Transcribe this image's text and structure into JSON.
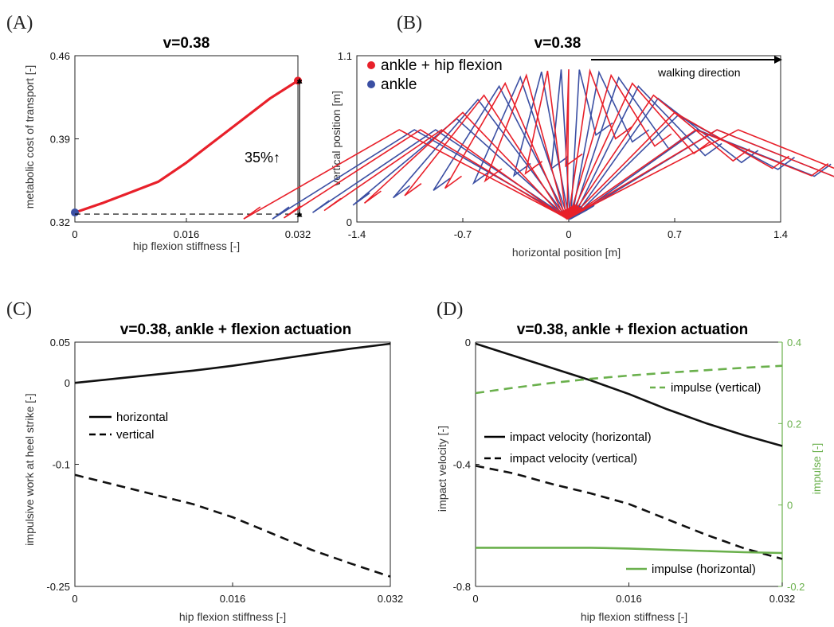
{
  "colors": {
    "red": "#e8202a",
    "blue": "#3b4fa3",
    "black": "#111111",
    "green": "#6ab04c",
    "axis": "#222222"
  },
  "chart_data": [
    {
      "id": "A",
      "panel_label": "(A)",
      "type": "line",
      "title": "v=0.38",
      "xlabel": "hip flexion stiffness [-]",
      "ylabel": "metabolic cost of transport [-]",
      "xlim": [
        0,
        0.032
      ],
      "ylim": [
        0.32,
        0.46
      ],
      "xticks": [
        0,
        0.016,
        0.032
      ],
      "xtick_labels": [
        "0",
        "0.016",
        "0.032"
      ],
      "yticks": [
        0.32,
        0.39,
        0.46
      ],
      "ytick_labels": [
        "0.32",
        "0.39",
        "0.46"
      ],
      "series": [
        {
          "color": "red",
          "x": [
            0,
            0.004,
            0.008,
            0.012,
            0.016,
            0.02,
            0.024,
            0.028,
            0.032
          ],
          "y": [
            0.328,
            0.336,
            0.345,
            0.354,
            0.37,
            0.388,
            0.406,
            0.424,
            0.439
          ]
        }
      ],
      "markers": [
        {
          "x": 0,
          "y": 0.328,
          "color": "blue"
        },
        {
          "x": 0.032,
          "y": 0.439,
          "color": "red"
        }
      ],
      "annotation": {
        "text": "35%↑",
        "y_low": 0.328,
        "y_high": 0.439
      }
    },
    {
      "id": "B",
      "panel_label": "(B)",
      "type": "line",
      "title": "v=0.38",
      "xlabel": "horizontal position [m]",
      "ylabel": "vertical position [m]",
      "xlim": [
        -1.4,
        1.4
      ],
      "ylim": [
        0,
        1.1
      ],
      "xticks": [
        -1.4,
        -0.7,
        0,
        0.7,
        1.4
      ],
      "xtick_labels": [
        "-1.4",
        "-0.7",
        "0",
        "0.7",
        "1.4"
      ],
      "yticks": [
        0,
        1.1
      ],
      "ytick_labels": [
        "0",
        "1.1"
      ],
      "legend": [
        {
          "label": "ankle + hip flexion",
          "color": "red"
        },
        {
          "label": "ankle",
          "color": "blue"
        }
      ],
      "arrow_label": "walking direction",
      "stick_figures": {
        "red": {
          "leg_length": 1.0,
          "foot_length": 0.11,
          "hip_x": [
            -1.12,
            -0.98,
            -0.84,
            -0.7,
            -0.56,
            -0.42,
            -0.28,
            -0.14,
            0.0,
            0.14,
            0.28,
            0.42,
            0.56,
            0.7,
            0.84,
            0.98,
            1.12
          ]
        },
        "blue": {
          "leg_length": 1.0,
          "foot_length": 0.11,
          "hip_x": [
            -1.02,
            -0.88,
            -0.74,
            -0.6,
            -0.46,
            -0.32,
            -0.18,
            -0.05,
            0.07,
            0.2,
            0.33,
            0.46,
            0.59,
            0.72,
            0.85,
            0.98
          ]
        }
      }
    },
    {
      "id": "C",
      "panel_label": "(C)",
      "type": "line",
      "title": "v=0.38, ankle + flexion actuation",
      "xlabel": "hip flexion stiffness [-]",
      "ylabel": "impulsive work at heel strike [-]",
      "xlim": [
        0,
        0.032
      ],
      "ylim": [
        -0.25,
        0.05
      ],
      "xticks": [
        0,
        0.016,
        0.032
      ],
      "xtick_labels": [
        "0",
        "0.016",
        "0.032"
      ],
      "yticks": [
        -0.25,
        -0.1,
        0,
        0.05
      ],
      "ytick_labels": [
        "-0.25",
        "-0.1",
        "0",
        "0.05"
      ],
      "series": [
        {
          "name": "horizontal",
          "color": "black",
          "dash": false,
          "x": [
            0,
            0.004,
            0.008,
            0.012,
            0.016,
            0.02,
            0.024,
            0.028,
            0.032
          ],
          "y": [
            0.0,
            0.005,
            0.01,
            0.015,
            0.021,
            0.028,
            0.035,
            0.042,
            0.048
          ]
        },
        {
          "name": "vertical",
          "color": "black",
          "dash": true,
          "x": [
            0,
            0.004,
            0.008,
            0.012,
            0.016,
            0.02,
            0.024,
            0.028,
            0.032
          ],
          "y": [
            -0.113,
            -0.125,
            -0.137,
            -0.149,
            -0.165,
            -0.185,
            -0.205,
            -0.222,
            -0.238
          ]
        }
      ],
      "legend": [
        {
          "label": "horizontal",
          "dash": false
        },
        {
          "label": "vertical",
          "dash": true
        }
      ]
    },
    {
      "id": "D",
      "panel_label": "(D)",
      "type": "line",
      "title": "v=0.38, ankle + flexion actuation",
      "xlabel": "hip flexion stiffness [-]",
      "ylabel": "impact velocity [-]",
      "ylabel_right": "impulse [-]",
      "xlim": [
        0,
        0.032
      ],
      "ylim": [
        -0.8,
        0
      ],
      "ylim_right": [
        -0.2,
        0.4
      ],
      "xticks": [
        0,
        0.016,
        0.032
      ],
      "xtick_labels": [
        "0",
        "0.016",
        "0.032"
      ],
      "yticks": [
        -0.8,
        -0.4,
        0
      ],
      "ytick_labels": [
        "-0.8",
        "-0.4",
        "0"
      ],
      "yticks_right": [
        -0.2,
        0,
        0.2,
        0.4
      ],
      "ytick_labels_right": [
        "-0.2",
        "0",
        "0.2",
        "0.4"
      ],
      "series": [
        {
          "name": "impact velocity (horizontal)",
          "axis": "left",
          "color": "black",
          "dash": false,
          "x": [
            0,
            0.004,
            0.008,
            0.012,
            0.016,
            0.02,
            0.024,
            0.028,
            0.032
          ],
          "y": [
            -0.005,
            -0.045,
            -0.085,
            -0.125,
            -0.17,
            -0.22,
            -0.265,
            -0.305,
            -0.34
          ]
        },
        {
          "name": "impact velocity (vertical)",
          "axis": "left",
          "color": "black",
          "dash": true,
          "x": [
            0,
            0.004,
            0.008,
            0.012,
            0.016,
            0.02,
            0.024,
            0.028,
            0.032
          ],
          "y": [
            -0.405,
            -0.43,
            -0.465,
            -0.495,
            -0.53,
            -0.58,
            -0.63,
            -0.675,
            -0.71
          ]
        },
        {
          "name": "impulse (vertical)",
          "axis": "right",
          "color": "green",
          "dash": true,
          "x": [
            0,
            0.004,
            0.008,
            0.012,
            0.016,
            0.02,
            0.024,
            0.028,
            0.032
          ],
          "y": [
            0.275,
            0.288,
            0.3,
            0.31,
            0.318,
            0.325,
            0.331,
            0.337,
            0.342
          ]
        },
        {
          "name": "impulse (horizontal)",
          "axis": "right",
          "color": "green",
          "dash": false,
          "x": [
            0,
            0.004,
            0.008,
            0.012,
            0.016,
            0.02,
            0.024,
            0.028,
            0.032
          ],
          "y": [
            -0.105,
            -0.105,
            -0.105,
            -0.105,
            -0.107,
            -0.11,
            -0.113,
            -0.116,
            -0.118
          ]
        }
      ]
    }
  ]
}
